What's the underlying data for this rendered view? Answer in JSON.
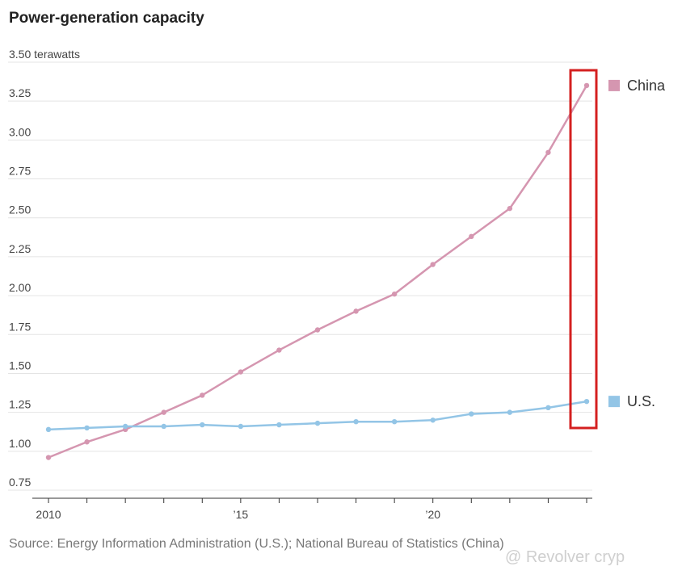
{
  "title": "Power-generation capacity",
  "source": "Source: Energy Information Administration (U.S.); National Bureau of Statistics (China)",
  "watermark": "@ Revolver cryp",
  "chart_data": {
    "type": "line",
    "title": "Power-generation capacity",
    "ylabel_unit": "terawatts",
    "x": [
      2010,
      2011,
      2012,
      2013,
      2014,
      2015,
      2016,
      2017,
      2018,
      2019,
      2020,
      2021,
      2022,
      2023,
      2024
    ],
    "xlim": [
      2010,
      2024
    ],
    "ylim": [
      0.75,
      3.5
    ],
    "y_ticks": [
      "0.75",
      "1.00",
      "1.25",
      "1.50",
      "1.75",
      "2.00",
      "2.25",
      "2.50",
      "2.75",
      "3.00",
      "3.25",
      "3.50 terawatts"
    ],
    "y_tick_values": [
      0.75,
      1.0,
      1.25,
      1.5,
      1.75,
      2.0,
      2.25,
      2.5,
      2.75,
      3.0,
      3.25,
      3.5
    ],
    "x_ticks": [
      "2010",
      "’15",
      "’20"
    ],
    "x_tick_values": [
      2010,
      2015,
      2020
    ],
    "grid": true,
    "legend_placement": "right, at series ends",
    "series": [
      {
        "name": "China",
        "color": "#d596b0",
        "values": [
          0.96,
          1.06,
          1.14,
          1.25,
          1.36,
          1.51,
          1.65,
          1.78,
          1.9,
          2.01,
          2.2,
          2.38,
          2.56,
          2.92,
          3.35
        ]
      },
      {
        "name": "U.S.",
        "color": "#93c5e6",
        "values": [
          1.14,
          1.15,
          1.16,
          1.16,
          1.17,
          1.16,
          1.17,
          1.18,
          1.19,
          1.19,
          1.2,
          1.24,
          1.25,
          1.28,
          1.32
        ]
      }
    ],
    "highlight_box_color": "#d42020"
  }
}
